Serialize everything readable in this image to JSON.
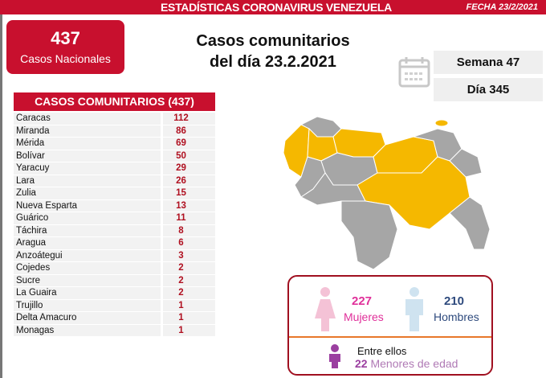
{
  "header": {
    "title": "ESTADÍSTICAS CORONAVIRUS VENEZUELA",
    "date": "FECHA 23/2/2021"
  },
  "national": {
    "count": "437",
    "label": "Casos Nacionales"
  },
  "title": {
    "line1": "Casos comunitarios",
    "line2": "del día 23.2.2021"
  },
  "week": "Semana 47",
  "day": "Día 345",
  "table": {
    "header": "CASOS COMUNITARIOS (437)",
    "rows": [
      {
        "state": "Caracas",
        "cases": "112"
      },
      {
        "state": "Miranda",
        "cases": "86"
      },
      {
        "state": "Mérida",
        "cases": "69"
      },
      {
        "state": "Bolívar",
        "cases": "50"
      },
      {
        "state": "Yaracuy",
        "cases": "29"
      },
      {
        "state": "Lara",
        "cases": "26"
      },
      {
        "state": "Zulia",
        "cases": "15"
      },
      {
        "state": "Nueva Esparta",
        "cases": "13"
      },
      {
        "state": "Guárico",
        "cases": "11"
      },
      {
        "state": "Táchira",
        "cases": "8"
      },
      {
        "state": "Aragua",
        "cases": "6"
      },
      {
        "state": "Anzoátegui",
        "cases": "3"
      },
      {
        "state": "Cojedes",
        "cases": "2"
      },
      {
        "state": "Sucre",
        "cases": "2"
      },
      {
        "state": "La Guaira",
        "cases": "2"
      },
      {
        "state": "Trujillo",
        "cases": "1"
      },
      {
        "state": "Delta Amacuro",
        "cases": "1"
      },
      {
        "state": "Monagas",
        "cases": "1"
      }
    ]
  },
  "gender": {
    "women_count": "227",
    "women_label": "Mujeres",
    "men_count": "210",
    "men_label": "Hombres",
    "among": "Entre ellos",
    "minors_count": "22",
    "minors_label": "Menores de edad"
  },
  "colors": {
    "red": "#c8102e",
    "map_affected": "#f5b800",
    "map_other": "#a6a6a6",
    "women": "#e0309a",
    "men": "#2e4a7d",
    "minor": "#9b3fa0"
  }
}
